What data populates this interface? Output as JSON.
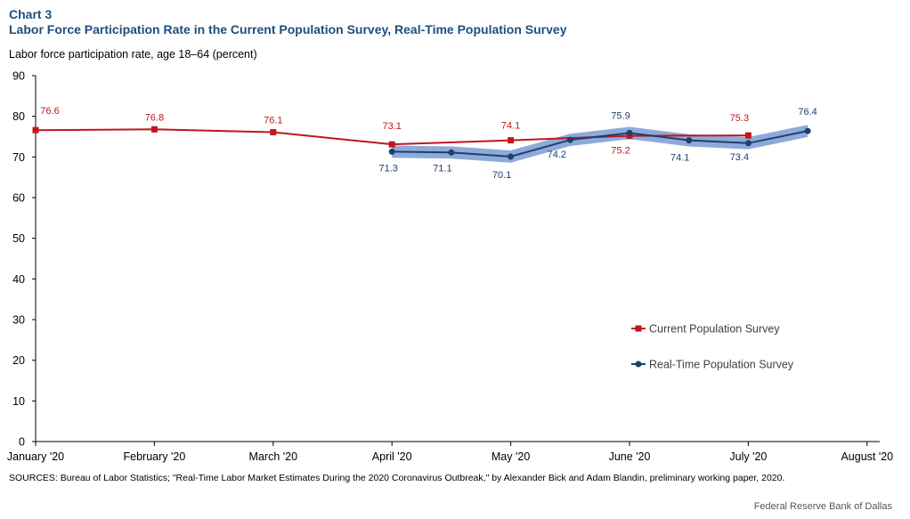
{
  "header": {
    "chart_number": "Chart 3",
    "title": "Labor Force Participation Rate in the Current Population Survey, Real-Time Population Survey"
  },
  "footer": {
    "sources": "SOURCES: Bureau of Labor Statistics; \"Real-Time Labor Market Estimates During the 2020 Coronavirus Outbreak,\" by Alexander Bick and Adam Blandin, preliminary working paper, 2020.",
    "credit": "Federal Reserve Bank of Dallas"
  },
  "colors": {
    "cps": "#c0161e",
    "rps": "#1f3f6e",
    "band": "#8eaadb",
    "axis": "#000000"
  },
  "chart_data": {
    "type": "line",
    "title": "Labor Force Participation Rate in the Current Population Survey, Real-Time Population Survey",
    "ylabel": "Labor force participation rate, age 18–64 (percent)",
    "xlabel": "",
    "ylim": [
      0,
      90
    ],
    "yticks": [
      0,
      10,
      20,
      30,
      40,
      50,
      60,
      70,
      80,
      90
    ],
    "categories": [
      "January '20",
      "February '20",
      "March '20",
      "April '20",
      "May '20",
      "June '20",
      "July '20",
      "August '20"
    ],
    "legend_position": "right-center",
    "grid": false,
    "series": [
      {
        "name": "Current Population Survey",
        "marker": "square",
        "points": [
          {
            "x": 0,
            "y": 76.6,
            "label": "76.6"
          },
          {
            "x": 1,
            "y": 76.8,
            "label": "76.8"
          },
          {
            "x": 2,
            "y": 76.1,
            "label": "76.1"
          },
          {
            "x": 3,
            "y": 73.1,
            "label": "73.1"
          },
          {
            "x": 4,
            "y": 74.1,
            "label": "74.1"
          },
          {
            "x": 5,
            "y": 75.2,
            "label": "75.2"
          },
          {
            "x": 6,
            "y": 75.3,
            "label": "75.3"
          }
        ]
      },
      {
        "name": "Real-Time Population Survey",
        "marker": "circle",
        "band_halfwidth": 1.5,
        "points": [
          {
            "x": 3,
            "y": 71.3,
            "label": "71.3"
          },
          {
            "x": 3.5,
            "y": 71.1,
            "label": "71.1"
          },
          {
            "x": 4,
            "y": 70.1,
            "label": "70.1"
          },
          {
            "x": 4.5,
            "y": 74.2,
            "label": "74.2"
          },
          {
            "x": 5,
            "y": 75.9,
            "label": "75.9"
          },
          {
            "x": 5.5,
            "y": 74.1,
            "label": "74.1"
          },
          {
            "x": 6,
            "y": 73.4,
            "label": "73.4"
          },
          {
            "x": 6.5,
            "y": 76.4,
            "label": "76.4"
          }
        ]
      }
    ]
  }
}
